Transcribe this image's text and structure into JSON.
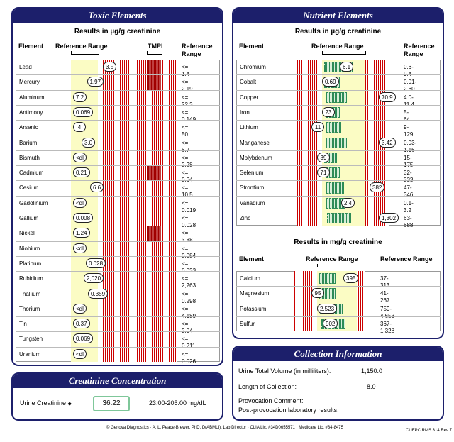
{
  "toxic": {
    "title": "Toxic Elements",
    "subtitle": "Results in µg/g creatinine",
    "col_element": "Element",
    "col_range": "Reference Range",
    "col_tmpl": "TMPL",
    "col_ref": "Reference Range",
    "rows": [
      {
        "name": "Lead",
        "value": "3.5",
        "ref": "<= 1.4"
      },
      {
        "name": "Mercury",
        "value": "1.97",
        "ref": "<= 2.19"
      },
      {
        "name": "Aluminum",
        "value": "7.2",
        "ref": "<= 22.3"
      },
      {
        "name": "Antimony",
        "value": "0.069",
        "ref": "<= 0.149"
      },
      {
        "name": "Arsenic",
        "value": "4",
        "ref": "<= 50"
      },
      {
        "name": "Barium",
        "value": "3.0",
        "ref": "<= 6.7"
      },
      {
        "name": "Bismuth",
        "value": "<dl",
        "ref": "<= 2.28"
      },
      {
        "name": "Cadmium",
        "value": "0.21",
        "ref": "<= 0.64"
      },
      {
        "name": "Cesium",
        "value": "6.6",
        "ref": "<= 10.5"
      },
      {
        "name": "Gadolinium",
        "value": "<dl",
        "ref": "<= 0.019"
      },
      {
        "name": "Gallium",
        "value": "0.008",
        "ref": "<= 0.028"
      },
      {
        "name": "Nickel",
        "value": "1.24",
        "ref": "<= 3.88"
      },
      {
        "name": "Niobium",
        "value": "<dl",
        "ref": "<= 0.084"
      },
      {
        "name": "Platinum",
        "value": "0.028",
        "ref": "<= 0.033"
      },
      {
        "name": "Rubidium",
        "value": "2,020",
        "ref": "<= 2,263"
      },
      {
        "name": "Thallium",
        "value": "0.359",
        "ref": "<= 0.298"
      },
      {
        "name": "Thorium",
        "value": "<dl",
        "ref": "<= 4.189"
      },
      {
        "name": "Tin",
        "value": "0.37",
        "ref": "<= 2.04"
      },
      {
        "name": "Tungsten",
        "value": "0.069",
        "ref": "<= 0.211"
      },
      {
        "name": "Uranium",
        "value": "<dl",
        "ref": "<= 0.026"
      }
    ]
  },
  "nutrient": {
    "title": "Nutrient Elements",
    "subtitle": "Results in µg/g creatinine",
    "col_element": "Element",
    "col_range": "Reference Range",
    "col_ref": "Reference Range",
    "rows": [
      {
        "name": "Chromium",
        "value": "6.1",
        "ref": "0.6-9.4"
      },
      {
        "name": "Cobalt",
        "value": "0.69",
        "ref": "0.01-2.60"
      },
      {
        "name": "Copper",
        "value": "70.9",
        "ref": "4.0-11.4"
      },
      {
        "name": "Iron",
        "value": "23",
        "ref": "5-64"
      },
      {
        "name": "Lithium",
        "value": "11",
        "ref": "9-129"
      },
      {
        "name": "Manganese",
        "value": "3.42",
        "ref": "0.03-1.16"
      },
      {
        "name": "Molybdenum",
        "value": "39",
        "ref": "15-175"
      },
      {
        "name": "Selenium",
        "value": "71",
        "ref": "32-333"
      },
      {
        "name": "Strontium",
        "value": "382",
        "ref": "47-346"
      },
      {
        "name": "Vanadium",
        "value": "2.4",
        "ref": "0.1-3.2"
      },
      {
        "name": "Zinc",
        "value": "1,302",
        "ref": "63-688"
      }
    ],
    "subtitle2": "Results in mg/g creatinine",
    "rows2": [
      {
        "name": "Calcium",
        "value": "395",
        "ref": "37-313"
      },
      {
        "name": "Magnesium",
        "value": "95",
        "ref": "41-267"
      },
      {
        "name": "Potassium",
        "value": "2,523",
        "ref": "759-4,653"
      },
      {
        "name": "Sulfur",
        "value": "902",
        "ref": "367-1,328"
      }
    ]
  },
  "creatinine": {
    "title": "Creatinine Concentration",
    "label": "Urine Creatinine",
    "marker": "◆",
    "value": "36.22",
    "range": "23.00-205.00 mg/dL"
  },
  "collection": {
    "title": "Collection Information",
    "volume_label": "Urine Total Volume (in milliliters):",
    "volume_value": "1,150.0",
    "length_label": "Length of Collection:",
    "length_value": "8.0",
    "comment_label": "Provocation Comment:",
    "comment_value": "Post-provocation laboratory results."
  },
  "footer": {
    "text": "© Genova Diagnostics · A. L. Peace-Brewer, PhD, D(ABMLI), Lab Director · CLIA Lic. #34D0655571 · Medicare Lic. #34-8475",
    "code": "CUEPC RMS 314 Rev 7"
  },
  "colors": {
    "navy": "#1c1f6b",
    "yellow": "#fbfcc4",
    "red": "#cc0000",
    "green": "#2e8b57"
  }
}
